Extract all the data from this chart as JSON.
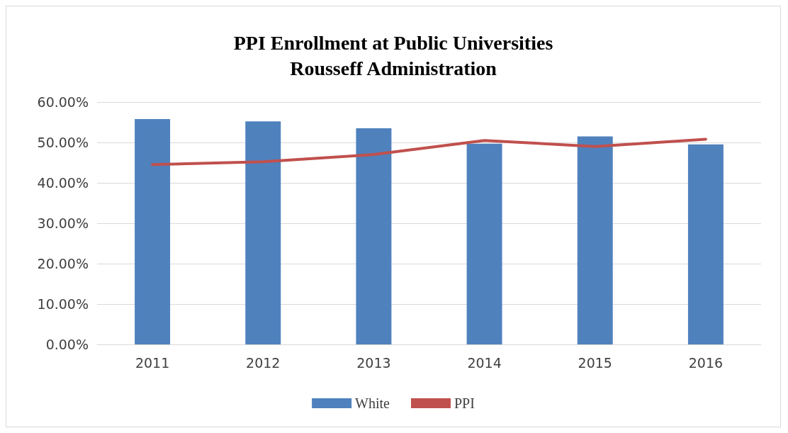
{
  "chart_data": {
    "type": "bar",
    "title": "PPI Enrollment at Public Universities\nRousseff Administration",
    "categories": [
      "2011",
      "2012",
      "2013",
      "2014",
      "2015",
      "2016"
    ],
    "series": [
      {
        "name": "White",
        "color": "#4f81bd",
        "values": [
          55.8,
          55.2,
          53.5,
          49.7,
          51.5,
          49.5
        ]
      },
      {
        "name": "PPI",
        "type": "line",
        "color": "#c0504d",
        "values": [
          44.5,
          45.2,
          47.0,
          50.5,
          49.0,
          50.8
        ]
      }
    ],
    "ylim": [
      0,
      60
    ],
    "yticks": [
      {
        "value": 0,
        "label": "0.00%"
      },
      {
        "value": 10,
        "label": "10.00%"
      },
      {
        "value": 20,
        "label": "20.00%"
      },
      {
        "value": 30,
        "label": "30.00%"
      },
      {
        "value": 40,
        "label": "40.00%"
      },
      {
        "value": 50,
        "label": "50.00%"
      },
      {
        "value": 60,
        "label": "60.00%"
      }
    ],
    "grid": "y",
    "legend": "bottom",
    "marker": "none"
  }
}
